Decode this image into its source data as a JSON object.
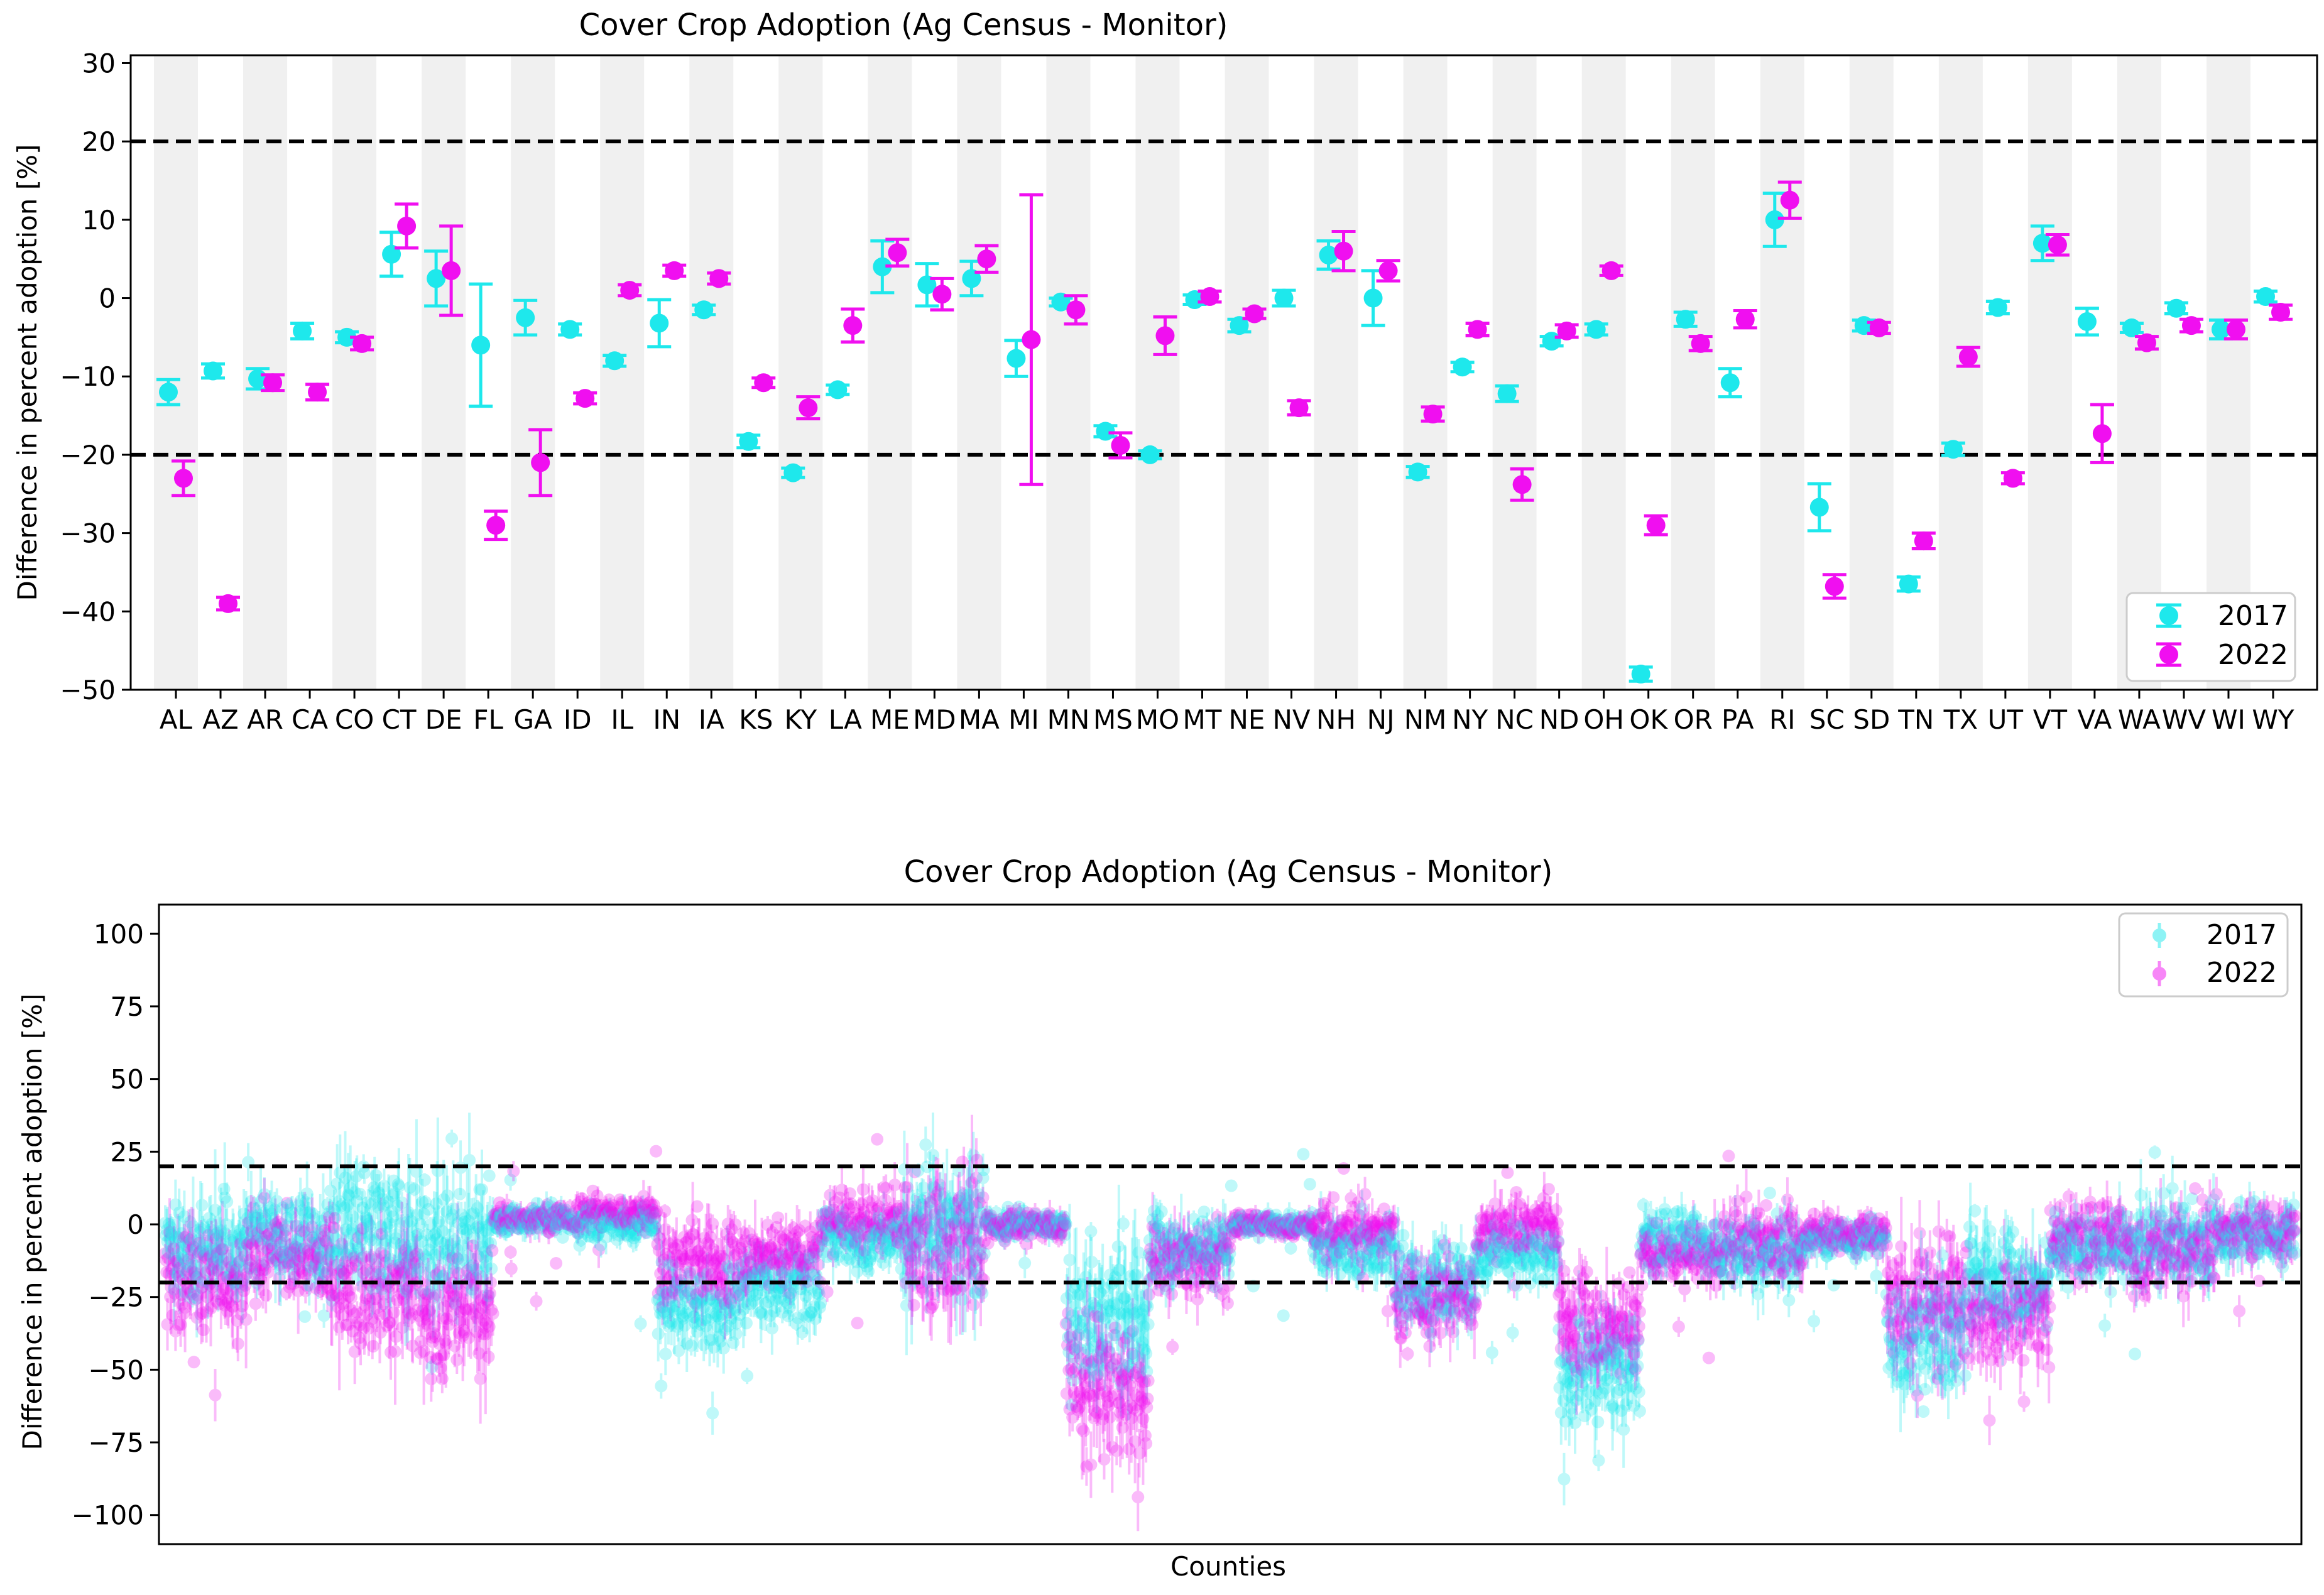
{
  "chart_data": [
    {
      "type": "errorbar-scatter",
      "title": "Cover Crop Adoption (Ag Census - Monitor)",
      "xlabel": "",
      "ylabel": "Difference in percent adoption [%]",
      "ylim": [
        -50,
        31
      ],
      "yticks": [
        30,
        20,
        10,
        0,
        -10,
        -20,
        -30,
        -40,
        -50
      ],
      "ytick_labels": [
        "30",
        "20",
        "10",
        "0",
        "−10",
        "−20",
        "−30",
        "−40",
        "−50"
      ],
      "reference_lines": [
        20,
        -20
      ],
      "alternating_band_color": "#f0f0f0",
      "legend": {
        "position": "bottom-right",
        "entries": [
          "2017",
          "2022"
        ]
      },
      "categories": [
        "AL",
        "AZ",
        "AR",
        "CA",
        "CO",
        "CT",
        "DE",
        "FL",
        "GA",
        "ID",
        "IL",
        "IN",
        "IA",
        "KS",
        "KY",
        "LA",
        "ME",
        "MD",
        "MA",
        "MI",
        "MN",
        "MS",
        "MO",
        "MT",
        "NE",
        "NV",
        "NH",
        "NJ",
        "NM",
        "NY",
        "NC",
        "ND",
        "OH",
        "OK",
        "OR",
        "PA",
        "RI",
        "SC",
        "SD",
        "TN",
        "TX",
        "UT",
        "VT",
        "VA",
        "WA",
        "WV",
        "WI",
        "WY"
      ],
      "series": [
        {
          "name": "2017",
          "color": "#1ee8ec",
          "values": [
            -12,
            -9.3,
            -10.3,
            -4.2,
            -5,
            5.6,
            2.5,
            -6,
            -2.5,
            -4,
            -8,
            -3.2,
            -1.5,
            -18.3,
            -22.3,
            -11.7,
            4,
            1.7,
            2.5,
            -7.7,
            -0.5,
            -17,
            -20,
            -0.2,
            -3.5,
            0,
            5.5,
            0,
            -22.2,
            -8.8,
            -12.2,
            -5.5,
            -4,
            -48,
            -2.7,
            -10.8,
            10,
            -26.7,
            -3.5,
            -36.5,
            -19.3,
            -1.2,
            7,
            -3,
            -3.8,
            -1.3,
            -4,
            0.2
          ],
          "errors": [
            1.6,
            0.9,
            1.3,
            1.0,
            0.7,
            2.8,
            3.5,
            7.8,
            2.2,
            0.7,
            0.7,
            3.0,
            0.6,
            0.8,
            0.6,
            0.6,
            3.3,
            2.7,
            2.2,
            2.3,
            0.5,
            0.7,
            0.5,
            0.6,
            0.8,
            1.0,
            1.8,
            3.5,
            0.7,
            0.6,
            1.0,
            0.6,
            0.7,
            0.9,
            0.9,
            1.8,
            3.4,
            3.0,
            0.7,
            0.9,
            0.8,
            0.8,
            2.2,
            1.7,
            0.6,
            0.7,
            1.2,
            0.7
          ]
        },
        {
          "name": "2022",
          "color": "#f00ff0",
          "values": [
            -23,
            -39,
            -10.8,
            -12,
            -5.8,
            9.2,
            3.5,
            -29,
            -21,
            -12.8,
            1,
            3.5,
            2.5,
            -10.8,
            -14,
            -3.5,
            5.8,
            0.5,
            5,
            -5.3,
            -1.5,
            -18.8,
            -4.8,
            0.2,
            -2,
            -14,
            6,
            3.5,
            -14.8,
            -4,
            -23.8,
            -4.2,
            3.5,
            -29,
            -5.8,
            -2.7,
            12.5,
            -36.8,
            -3.8,
            -31,
            -7.5,
            -23,
            6.8,
            -17.3,
            -5.7,
            -3.5,
            -4,
            -1.8
          ],
          "errors": [
            2.2,
            0.8,
            1.0,
            1.0,
            0.8,
            2.8,
            5.7,
            1.8,
            4.2,
            0.7,
            0.7,
            0.7,
            0.7,
            0.6,
            1.4,
            2.1,
            1.7,
            2.0,
            1.7,
            18.5,
            1.8,
            1.6,
            2.4,
            0.7,
            0.6,
            0.9,
            2.5,
            1.3,
            0.9,
            0.8,
            2.0,
            0.8,
            0.6,
            1.2,
            0.9,
            1.1,
            2.3,
            1.5,
            0.7,
            1.0,
            1.2,
            0.7,
            1.3,
            3.7,
            0.8,
            0.8,
            1.2,
            0.9
          ]
        }
      ]
    },
    {
      "type": "errorbar-scatter",
      "title": "Cover Crop Adoption (Ag Census - Monitor)",
      "xlabel": "Counties",
      "ylabel": "Difference in percent adoption [%]",
      "ylim": [
        -110,
        110
      ],
      "yticks": [
        100,
        75,
        50,
        25,
        0,
        -25,
        -50,
        -75,
        -100
      ],
      "ytick_labels": [
        "100",
        "75",
        "50",
        "25",
        "0",
        "−25",
        "−50",
        "−75",
        "−100"
      ],
      "reference_lines": [
        20,
        -20
      ],
      "legend": {
        "position": "top-right",
        "entries": [
          "2017",
          "2022"
        ]
      },
      "county_count": 2900,
      "segment_profile_description": "Approximate per-county-block mean differences (approx. 26 blocks of counties in state order), center and spread",
      "segment_profile": [
        {
          "block": 1,
          "mean_2017": -8,
          "mean_2022": -20,
          "spread": 14
        },
        {
          "block": 2,
          "mean_2017": -5,
          "mean_2022": -10,
          "spread": 12
        },
        {
          "block": 3,
          "mean_2017": 0,
          "mean_2022": -22,
          "spread": 18
        },
        {
          "block": 4,
          "mean_2017": -4,
          "mean_2022": -28,
          "spread": 18
        },
        {
          "block": 5,
          "mean_2017": 2,
          "mean_2022": 2,
          "spread": 4
        },
        {
          "block": 6,
          "mean_2017": 0,
          "mean_2022": 4,
          "spread": 5
        },
        {
          "block": 7,
          "mean_2017": -28,
          "mean_2022": -15,
          "spread": 12
        },
        {
          "block": 8,
          "mean_2017": -22,
          "mean_2022": -10,
          "spread": 10
        },
        {
          "block": 9,
          "mean_2017": -5,
          "mean_2022": 2,
          "spread": 8
        },
        {
          "block": 10,
          "mean_2017": 0,
          "mean_2022": -5,
          "spread": 20
        },
        {
          "block": 11,
          "mean_2017": 0,
          "mean_2022": 0,
          "spread": 4
        },
        {
          "block": 12,
          "mean_2017": -35,
          "mean_2022": -55,
          "spread": 20
        },
        {
          "block": 13,
          "mean_2017": -8,
          "mean_2022": -12,
          "spread": 10
        },
        {
          "block": 14,
          "mean_2017": 0,
          "mean_2022": 0,
          "spread": 3
        },
        {
          "block": 15,
          "mean_2017": -8,
          "mean_2022": -2,
          "spread": 8
        },
        {
          "block": 16,
          "mean_2017": -20,
          "mean_2022": -25,
          "spread": 12
        },
        {
          "block": 17,
          "mean_2017": -10,
          "mean_2022": -2,
          "spread": 8
        },
        {
          "block": 18,
          "mean_2017": -50,
          "mean_2022": -35,
          "spread": 15
        },
        {
          "block": 19,
          "mean_2017": -5,
          "mean_2022": -10,
          "spread": 8
        },
        {
          "block": 20,
          "mean_2017": -10,
          "mean_2022": -5,
          "spread": 10
        },
        {
          "block": 21,
          "mean_2017": -5,
          "mean_2022": -3,
          "spread": 5
        },
        {
          "block": 22,
          "mean_2017": -40,
          "mean_2022": -25,
          "spread": 18
        },
        {
          "block": 23,
          "mean_2017": -20,
          "mean_2022": -30,
          "spread": 14
        },
        {
          "block": 24,
          "mean_2017": -8,
          "mean_2022": -5,
          "spread": 10
        },
        {
          "block": 25,
          "mean_2017": -5,
          "mean_2022": -8,
          "spread": 12
        },
        {
          "block": 26,
          "mean_2017": -3,
          "mean_2022": -2,
          "spread": 8
        }
      ]
    }
  ]
}
